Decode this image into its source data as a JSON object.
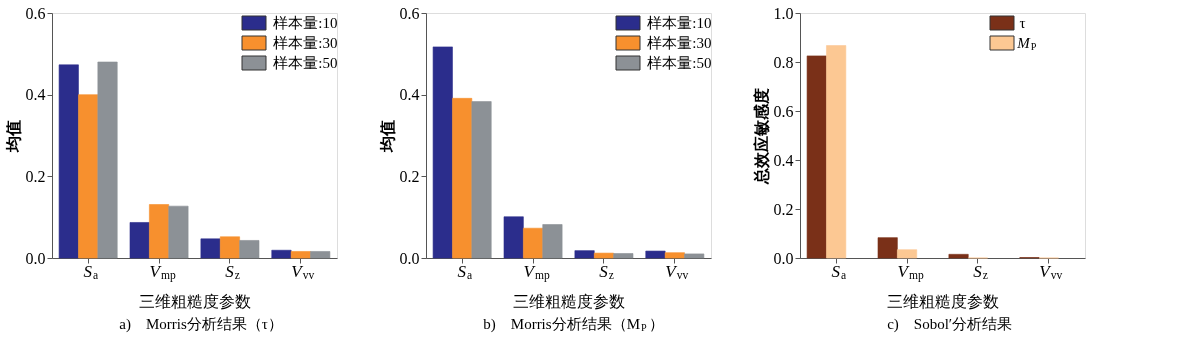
{
  "chart_data": [
    {
      "type": "bar",
      "title": "a)　Morris分析结果（τ）",
      "xlabel": "三维粗糙度参数",
      "ylabel": "均值",
      "categories": [
        "S$_{a}$",
        "V$_{mp}$",
        "S$_{z}$",
        "V$_{vv}$"
      ],
      "legend": "top right",
      "grid": false,
      "ylim": [
        0,
        0.6
      ],
      "yticks": [
        {
          "value": 0,
          "label": "0.0"
        },
        {
          "value": 0.2,
          "label": "0.2"
        },
        {
          "value": 0.4,
          "label": "0.4"
        },
        {
          "value": 0.6,
          "label": "0.6"
        }
      ],
      "series": [
        {
          "name": "样本量:10",
          "color": "#2b2d8c",
          "values": [
            0.473,
            0.087,
            0.047,
            0.019
          ]
        },
        {
          "name": "样本量:30",
          "color": "#f7902e",
          "values": [
            0.4,
            0.131,
            0.052,
            0.016
          ]
        },
        {
          "name": "样本量:50",
          "color": "#8c9196",
          "values": [
            0.48,
            0.127,
            0.043,
            0.016
          ]
        }
      ]
    },
    {
      "type": "bar",
      "title": "b)　Morris分析结果（M$_{P}$）",
      "xlabel": "三维粗糙度参数",
      "ylabel": "均值",
      "categories": [
        "S$_{a}$",
        "V$_{mp}$",
        "S$_{z}$",
        "V$_{vv}$"
      ],
      "legend": "top right",
      "grid": false,
      "ylim": [
        0,
        0.6
      ],
      "yticks": [
        {
          "value": 0,
          "label": "0.0"
        },
        {
          "value": 0.2,
          "label": "0.2"
        },
        {
          "value": 0.4,
          "label": "0.4"
        },
        {
          "value": 0.6,
          "label": "0.6"
        }
      ],
      "series": [
        {
          "name": "样本量:10",
          "color": "#2b2d8c",
          "values": [
            0.517,
            0.101,
            0.018,
            0.017
          ]
        },
        {
          "name": "样本量:30",
          "color": "#f7902e",
          "values": [
            0.391,
            0.073,
            0.012,
            0.013
          ]
        },
        {
          "name": "样本量:50",
          "color": "#8c9196",
          "values": [
            0.383,
            0.082,
            0.011,
            0.01
          ]
        }
      ]
    },
    {
      "type": "bar",
      "title": "c)　Sobol′分析结果",
      "xlabel": "三维粗糙度参数",
      "ylabel": "总效应敏感度",
      "categories": [
        "S$_{a}$",
        "V$_{mp}$",
        "S$_{z}$",
        "V$_{vv}$"
      ],
      "legend": "top right",
      "grid": false,
      "ylim": [
        0,
        1.0
      ],
      "yticks": [
        {
          "value": 0,
          "label": "0.0"
        },
        {
          "value": 0.2,
          "label": "0.2"
        },
        {
          "value": 0.4,
          "label": "0.4"
        },
        {
          "value": 0.6,
          "label": "0.6"
        },
        {
          "value": 0.8,
          "label": "0.8"
        },
        {
          "value": 1.0,
          "label": "1.0"
        }
      ],
      "series": [
        {
          "name": "τ",
          "color": "#7a3018",
          "values": [
            0.825,
            0.083,
            0.015,
            0.002
          ]
        },
        {
          "name": "M$_{P}$",
          "color": "#fcc893",
          "values": [
            0.867,
            0.034,
            0.0,
            0.0
          ]
        }
      ]
    }
  ]
}
